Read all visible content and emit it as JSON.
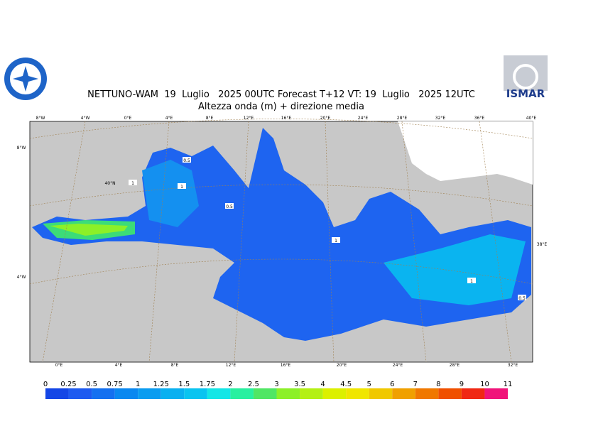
{
  "header": {
    "title": "NETTUNO-WAM  19  Luglio   2025 00UTC Forecast T+12 VT: 19  Luglio   2025 12UTC",
    "subtitle": "Altezza onda (m) + direzione media",
    "logo_right": "ISMAR"
  },
  "map": {
    "top_labels": [
      "8°W",
      "4°W",
      "0°E",
      "4°E",
      "8°E",
      "12°E",
      "16°E",
      "20°E",
      "24°E",
      "28°E",
      "32°E",
      "36°E",
      "40°E"
    ],
    "bottom_labels": [
      "0°E",
      "4°E",
      "8°E",
      "12°E",
      "16°E",
      "20°E",
      "24°E",
      "28°E",
      "32°E"
    ],
    "left_labels": [
      "8°W",
      "4°W"
    ],
    "inner_labels": [
      "40°N"
    ],
    "right_labels": [
      "38°E"
    ],
    "contour_labels": [
      "0.5",
      "1",
      "1",
      "0.5",
      "1",
      "1",
      "0.5"
    ]
  },
  "legend": {
    "labels": [
      "0",
      "0.25",
      "0.5",
      "0.75",
      "1",
      "1.25",
      "1.5",
      "1.75",
      "2",
      "2.5",
      "3",
      "3.5",
      "4",
      "4.5",
      "5",
      "6",
      "7",
      "8",
      "9",
      "10",
      "11"
    ],
    "colors": [
      "#1446e6",
      "#1e5af0",
      "#1470f0",
      "#0a88f0",
      "#0a9cf0",
      "#0ab0f0",
      "#0ac4f0",
      "#14e6e6",
      "#28f0a0",
      "#50e664",
      "#8cf028",
      "#b4f014",
      "#dcf000",
      "#f0e600",
      "#f0c800",
      "#f0a000",
      "#f07800",
      "#f05000",
      "#f02814",
      "#f0147a"
    ]
  }
}
